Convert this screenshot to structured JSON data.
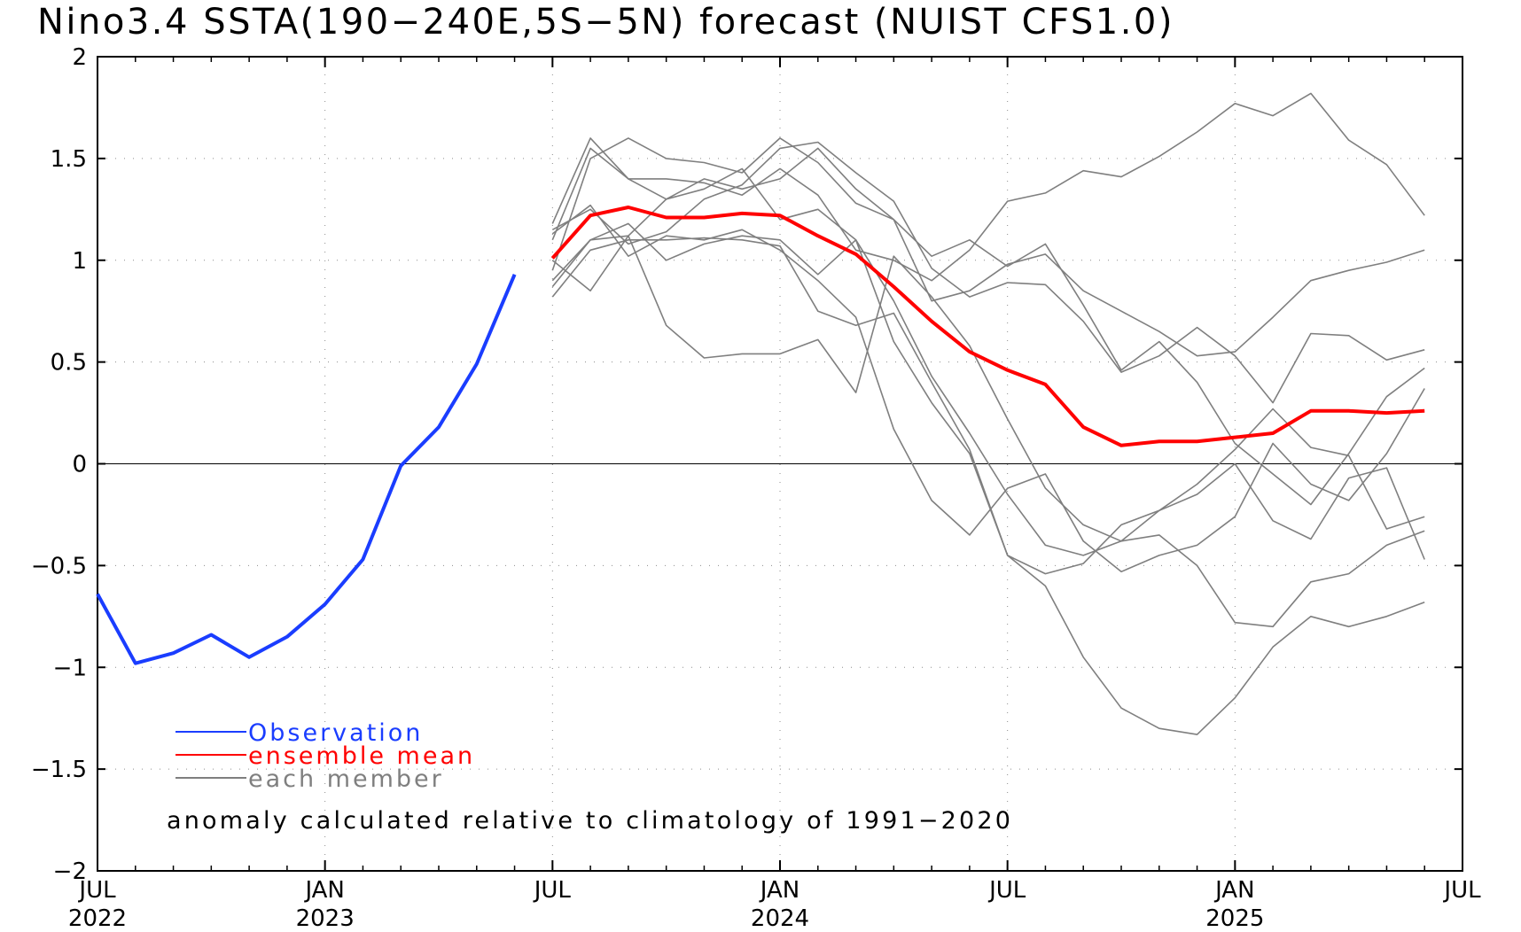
{
  "chart_data": {
    "type": "line",
    "title": "Nino3.4 SSTA(190−240E,5S−5N) forecast (NUIST CFS1.0)",
    "xlabel": "",
    "ylabel": "",
    "x_range": [
      "2022-07",
      "2025-07"
    ],
    "ylim": [
      -2,
      2
    ],
    "y_ticks": [
      2,
      1.5,
      1,
      0.5,
      0,
      -0.5,
      -1,
      -1.5,
      -2
    ],
    "y_tick_labels": [
      "2",
      "1.5",
      "1",
      "0.5",
      "0",
      "−0.5",
      "−1",
      "−1.5",
      "−2"
    ],
    "x_ticks": [
      {
        "date": "2022-07",
        "month": "JUL",
        "year": "2022"
      },
      {
        "date": "2023-01",
        "month": "JAN",
        "year": "2023"
      },
      {
        "date": "2023-07",
        "month": "JUL",
        "year": ""
      },
      {
        "date": "2024-01",
        "month": "JAN",
        "year": "2024"
      },
      {
        "date": "2024-07",
        "month": "JUL",
        "year": ""
      },
      {
        "date": "2025-01",
        "month": "JAN",
        "year": "2025"
      },
      {
        "date": "2025-07",
        "month": "JUL",
        "year": ""
      }
    ],
    "grid": true,
    "legend_position": "bottom-left",
    "annotation": "anomaly calculated relative to climatology of 1991−2020",
    "colors": {
      "observation": "#1a3dff",
      "ensemble_mean": "#ff0000",
      "member": "#7f7f7f",
      "grid": "#8c8c8c"
    },
    "series": [
      {
        "name": "Observation",
        "role": "observation",
        "x": [
          "2022-07",
          "2022-08",
          "2022-09",
          "2022-10",
          "2022-11",
          "2022-12",
          "2023-01",
          "2023-02",
          "2023-03",
          "2023-04",
          "2023-05",
          "2023-06"
        ],
        "values": [
          -0.64,
          -0.98,
          -0.93,
          -0.84,
          -0.95,
          -0.85,
          -0.69,
          -0.47,
          -0.01,
          0.18,
          0.49,
          0.93
        ]
      },
      {
        "name": "ensemble mean",
        "role": "ensemble_mean",
        "x": [
          "2023-07",
          "2023-08",
          "2023-09",
          "2023-10",
          "2023-11",
          "2023-12",
          "2024-01",
          "2024-02",
          "2024-03",
          "2024-04",
          "2024-05",
          "2024-06",
          "2024-07",
          "2024-08",
          "2024-09",
          "2024-10",
          "2024-11",
          "2024-12",
          "2025-01",
          "2025-02",
          "2025-03",
          "2025-04",
          "2025-05",
          "2025-06"
        ],
        "values": [
          1.01,
          1.22,
          1.26,
          1.21,
          1.21,
          1.23,
          1.22,
          1.12,
          1.03,
          0.87,
          0.7,
          0.55,
          0.46,
          0.39,
          0.18,
          0.09,
          0.11,
          0.11,
          0.13,
          0.15,
          0.26,
          0.26,
          0.25,
          0.26
        ]
      },
      {
        "name": "each member",
        "role": "member",
        "x": [
          "2023-07",
          "2023-08",
          "2023-09",
          "2023-10",
          "2023-11",
          "2023-12",
          "2024-01",
          "2024-02",
          "2024-03",
          "2024-04",
          "2024-05",
          "2024-06",
          "2024-07",
          "2024-08",
          "2024-09",
          "2024-10",
          "2024-11",
          "2024-12",
          "2025-01",
          "2025-02",
          "2025-03",
          "2025-04",
          "2025-05",
          "2025-06"
        ],
        "members": [
          [
            1.18,
            1.6,
            1.4,
            1.4,
            1.38,
            1.32,
            1.45,
            1.32,
            1.05,
            1.0,
            0.9,
            1.05,
            1.29,
            1.33,
            1.44,
            1.41,
            1.51,
            1.63,
            1.77,
            1.71,
            1.82,
            1.59,
            1.47,
            1.22
          ],
          [
            0.95,
            1.5,
            1.6,
            1.5,
            1.48,
            1.43,
            1.6,
            1.48,
            1.28,
            1.2,
            0.8,
            0.85,
            0.98,
            1.03,
            0.85,
            0.75,
            0.65,
            0.53,
            0.55,
            0.72,
            0.9,
            0.95,
            0.99,
            1.05
          ],
          [
            1.15,
            1.25,
            1.08,
            1.14,
            1.3,
            1.37,
            1.55,
            1.58,
            1.43,
            1.29,
            0.96,
            0.82,
            0.89,
            0.88,
            0.7,
            0.45,
            0.53,
            0.67,
            0.53,
            0.3,
            0.64,
            0.63,
            0.51,
            0.56
          ],
          [
            0.9,
            1.1,
            1.12,
            1.3,
            1.4,
            1.35,
            1.4,
            1.55,
            1.35,
            1.2,
            1.02,
            1.1,
            0.97,
            1.08,
            0.78,
            0.46,
            0.6,
            0.4,
            0.1,
            -0.05,
            -0.2,
            0.05,
            0.33,
            0.47
          ],
          [
            1.1,
            1.55,
            1.4,
            1.3,
            1.35,
            1.45,
            1.2,
            1.25,
            1.1,
            0.8,
            0.43,
            0.15,
            -0.15,
            -0.4,
            -0.45,
            -0.38,
            -0.35,
            -0.5,
            -0.78,
            -0.8,
            -0.58,
            -0.54,
            -0.4,
            -0.33
          ],
          [
            1.13,
            1.27,
            1.02,
            1.12,
            1.1,
            1.15,
            1.05,
            0.9,
            0.72,
            0.17,
            -0.18,
            -0.35,
            -0.12,
            -0.05,
            -0.38,
            -0.53,
            -0.45,
            -0.4,
            -0.26,
            0.1,
            -0.1,
            -0.18,
            0.05,
            0.37
          ],
          [
            0.87,
            1.1,
            1.18,
            1.0,
            1.08,
            1.12,
            1.1,
            0.93,
            1.1,
            0.6,
            0.3,
            0.05,
            -0.45,
            -0.6,
            -0.95,
            -1.2,
            -1.3,
            -1.33,
            -1.15,
            -0.9,
            -0.75,
            -0.8,
            -0.75,
            -0.68
          ],
          [
            1.0,
            0.85,
            1.12,
            0.68,
            0.52,
            0.54,
            0.54,
            0.61,
            0.35,
            1.02,
            0.82,
            0.58,
            0.22,
            -0.12,
            -0.3,
            -0.38,
            -0.23,
            -0.1,
            0.07,
            0.27,
            0.08,
            0.04,
            -0.32,
            -0.26
          ],
          [
            0.82,
            1.05,
            1.1,
            1.1,
            1.11,
            1.1,
            1.07,
            0.75,
            0.68,
            0.74,
            0.4,
            0.07,
            -0.45,
            -0.54,
            -0.49,
            -0.3,
            -0.23,
            -0.15,
            0.0,
            -0.28,
            -0.37,
            -0.07,
            -0.02,
            -0.47
          ]
        ]
      }
    ]
  }
}
